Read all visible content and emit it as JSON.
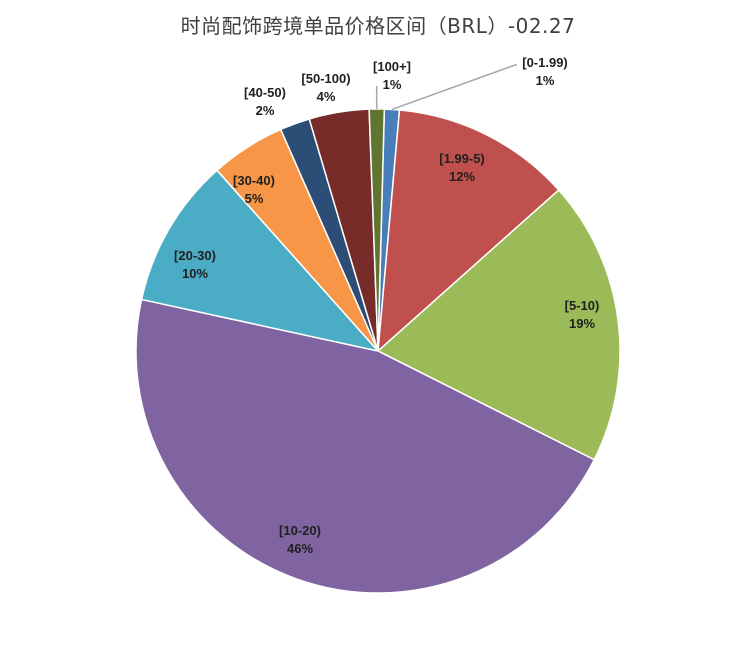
{
  "chart_data": {
    "type": "pie",
    "title": "时尚配饰跨境单品价格区间（BRL）-02.27",
    "slices": [
      {
        "label": "[0-1.99)",
        "percent_label": "1%",
        "value": 1,
        "color": "#4a7ebb"
      },
      {
        "label": "[1.99-5)",
        "percent_label": "12%",
        "value": 12,
        "color": "#c0504d"
      },
      {
        "label": "[5-10)",
        "percent_label": "19%",
        "value": 19,
        "color": "#9bbb59"
      },
      {
        "label": "[10-20)",
        "percent_label": "46%",
        "value": 46,
        "color": "#8064a2"
      },
      {
        "label": "[20-30)",
        "percent_label": "10%",
        "value": 10,
        "color": "#4bacc6"
      },
      {
        "label": "[30-40)",
        "percent_label": "5%",
        "value": 5,
        "color": "#f79646"
      },
      {
        "label": "[40-50)",
        "percent_label": "2%",
        "value": 2,
        "color": "#2c4d75"
      },
      {
        "label": "[50-100)",
        "percent_label": "4%",
        "value": 4,
        "color": "#772c2a"
      },
      {
        "label": "[100+]",
        "percent_label": "1%",
        "value": 1,
        "color": "#5f7530"
      }
    ],
    "legend": "none",
    "leader_line_color": "#a6a6a6"
  }
}
